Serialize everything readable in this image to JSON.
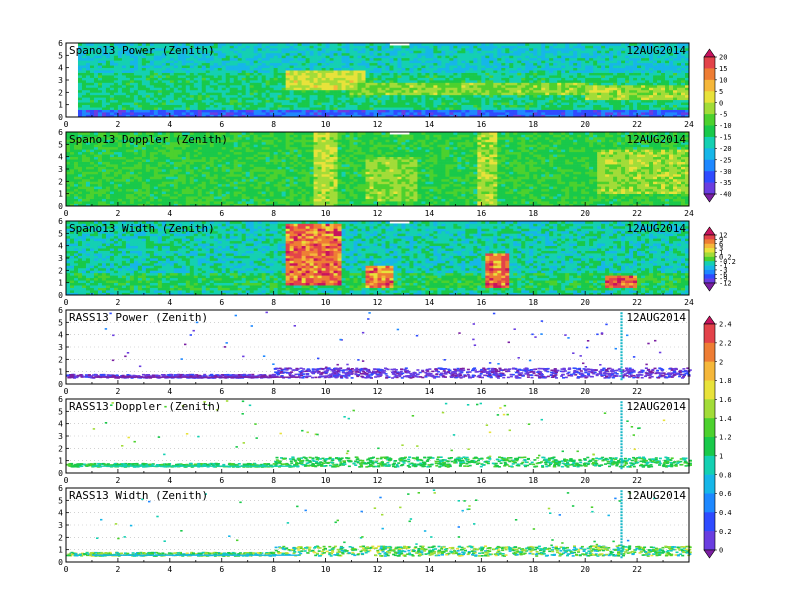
{
  "figure": {
    "date_label": "12AUG2014"
  },
  "palettes": {
    "rainbow": [
      "#7b1fa2",
      "#6a3de0",
      "#2f4bff",
      "#1e88ff",
      "#16b6e8",
      "#14d0b2",
      "#19c94a",
      "#4cd12e",
      "#a2dc38",
      "#e8e23a",
      "#f5b73a",
      "#ee7d34",
      "#e3434a",
      "#c8135e"
    ]
  },
  "colorbars": [
    {
      "panel_span": [
        0,
        1
      ],
      "labels": [
        "20",
        "15",
        "10",
        "5",
        "0",
        "-5",
        "-10",
        "-15",
        "-20",
        "-25",
        "-30",
        "-35",
        "-40"
      ]
    },
    {
      "panel_span": [
        2,
        2
      ],
      "labels": [
        "12",
        "9",
        "6",
        "3",
        "1",
        "0.2",
        "-0.2",
        "-1",
        "-3",
        "-6",
        "-9",
        "-12"
      ]
    },
    {
      "panel_span": [
        3,
        5
      ],
      "labels": [
        "2.4",
        "2.2",
        "2",
        "1.8",
        "1.6",
        "1.4",
        "1.2",
        "1",
        "0.8",
        "0.6",
        "0.4",
        "0.2",
        "0"
      ]
    }
  ],
  "chart_data": [
    {
      "type": "heatmap",
      "title": "Spano13 Power (Zenith)",
      "date": "12AUG2014",
      "xlim": [
        0,
        24
      ],
      "ylim": [
        0,
        6
      ],
      "xticks": [
        "0",
        "2",
        "4",
        "6",
        "8",
        "10",
        "12",
        "14",
        "16",
        "18",
        "20",
        "22",
        "24"
      ],
      "yticks": [
        "0",
        "1",
        "2",
        "3",
        "4",
        "5",
        "6"
      ],
      "field": {
        "base": 5.6,
        "noise": 1.0,
        "seed": 11,
        "features": [
          {
            "x": [
              0,
              24
            ],
            "y": [
              0,
              0.7
            ],
            "v": 2.2
          },
          {
            "x": [
              0,
              24
            ],
            "y": [
              3.6,
              6
            ],
            "v": 4.7
          },
          {
            "x": [
              8.5,
              11.5
            ],
            "y": [
              2.2,
              3.9
            ],
            "v": 8.6
          },
          {
            "x": [
              11,
              20
            ],
            "y": [
              1.8,
              2.7
            ],
            "v": 7.6
          },
          {
            "x": [
              20,
              24
            ],
            "y": [
              1.5,
              2.6
            ],
            "v": 7.8
          }
        ]
      },
      "gaps": [
        {
          "x": [
            12.4,
            13.2
          ],
          "y": [
            5.75,
            6
          ]
        },
        {
          "x": [
            0,
            0.4
          ],
          "y": [
            0,
            6
          ]
        }
      ]
    },
    {
      "type": "heatmap",
      "title": "Spano13 Doppler (Zenith)",
      "date": "12AUG2014",
      "xlim": [
        0,
        24
      ],
      "ylim": [
        0,
        6
      ],
      "xticks": [
        "0",
        "2",
        "4",
        "6",
        "8",
        "10",
        "12",
        "14",
        "16",
        "18",
        "20",
        "22",
        "24"
      ],
      "yticks": [
        "0",
        "1",
        "2",
        "3",
        "4",
        "5",
        "6"
      ],
      "field": {
        "base": 6.3,
        "noise": 0.9,
        "seed": 23,
        "features": [
          {
            "x": [
              9.5,
              10.4
            ],
            "y": [
              0,
              6
            ],
            "v": 8.2
          },
          {
            "x": [
              15.8,
              16.6
            ],
            "y": [
              0,
              6
            ],
            "v": 8.0
          },
          {
            "x": [
              11.5,
              13.5
            ],
            "y": [
              0.5,
              4
            ],
            "v": 7.7
          },
          {
            "x": [
              20.5,
              24
            ],
            "y": [
              1,
              4.5
            ],
            "v": 7.9
          }
        ]
      },
      "gaps": [
        {
          "x": [
            12.4,
            13.2
          ],
          "y": [
            5.75,
            6
          ]
        }
      ]
    },
    {
      "type": "heatmap",
      "title": "Spano13 Width (Zenith)",
      "date": "12AUG2014",
      "xlim": [
        0,
        24
      ],
      "ylim": [
        0,
        6
      ],
      "xticks": [
        "0",
        "2",
        "4",
        "6",
        "8",
        "10",
        "12",
        "14",
        "16",
        "18",
        "20",
        "22",
        "24"
      ],
      "yticks": [
        "0",
        "1",
        "2",
        "3",
        "4",
        "5",
        "6"
      ],
      "field": {
        "base": 5.0,
        "noise": 1.1,
        "seed": 37,
        "features": [
          {
            "x": [
              0,
              24
            ],
            "y": [
              0.5,
              1.8
            ],
            "v": 6.0
          },
          {
            "x": [
              8.4,
              10.6
            ],
            "y": [
              0.8,
              5.8
            ],
            "v": 10.4
          },
          {
            "x": [
              11.6,
              12.6
            ],
            "y": [
              0.6,
              2.5
            ],
            "v": 10.0
          },
          {
            "x": [
              16.2,
              17
            ],
            "y": [
              0.6,
              3.5
            ],
            "v": 10.4
          },
          {
            "x": [
              20.8,
              22
            ],
            "y": [
              0.6,
              1.6
            ],
            "v": 10.6
          }
        ]
      },
      "gaps": [
        {
          "x": [
            12.4,
            13.2
          ],
          "y": [
            5.75,
            6
          ]
        }
      ]
    },
    {
      "type": "scatter",
      "title": "RASS13 Power (Zenith)",
      "date": "12AUG2014",
      "xlim": [
        0,
        24
      ],
      "ylim": [
        0,
        6
      ],
      "xticks": [
        "0",
        "2",
        "4",
        "6",
        "8",
        "10",
        "12",
        "14",
        "16",
        "18",
        "20",
        "22",
        ""
      ],
      "yticks": [
        "0",
        "1",
        "2",
        "3",
        "4",
        "5",
        "6"
      ],
      "band": {
        "y": [
          0.5,
          1.3
        ],
        "color_range": [
          0,
          2
        ],
        "density": 2.4
      },
      "scatter_color_range": [
        0,
        3
      ],
      "spike": {
        "x": 21.4,
        "y": [
          0.3,
          5.9
        ]
      },
      "seed": 51
    },
    {
      "type": "scatter",
      "title": "RASS13 Doppler (Zenith)",
      "date": "12AUG2014",
      "xlim": [
        0,
        24
      ],
      "ylim": [
        0,
        6
      ],
      "xticks": [
        "0",
        "2",
        "4",
        "6",
        "8",
        "10",
        "12",
        "14",
        "16",
        "18",
        "20",
        "22",
        ""
      ],
      "yticks": [
        "0",
        "1",
        "2",
        "3",
        "4",
        "5",
        "6"
      ],
      "band": {
        "y": [
          0.5,
          1.3
        ],
        "color_range": [
          5,
          7
        ],
        "density": 2.0
      },
      "scatter_color_range": [
        5,
        9
      ],
      "spike": {
        "x": 21.4,
        "y": [
          0.3,
          5.9
        ]
      },
      "seed": 63
    },
    {
      "type": "scatter",
      "title": "RASS13 Width (Zenith)",
      "date": "12AUG2014",
      "xlim": [
        0,
        24
      ],
      "ylim": [
        0,
        6
      ],
      "xticks": [
        "0",
        "2",
        "4",
        "6",
        "8",
        "10",
        "12",
        "14",
        "16",
        "18",
        "20",
        "22",
        ""
      ],
      "yticks": [
        "0",
        "1",
        "2",
        "3",
        "4",
        "5",
        "6"
      ],
      "band": {
        "y": [
          0.5,
          1.3
        ],
        "color_range": [
          4,
          9
        ],
        "density": 2.0
      },
      "scatter_color_range": [
        3,
        8
      ],
      "spike": {
        "x": 21.4,
        "y": [
          0.3,
          5.9
        ]
      },
      "seed": 77
    }
  ]
}
